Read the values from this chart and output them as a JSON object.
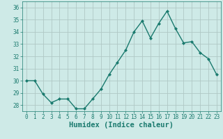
{
  "title": "",
  "xlabel": "Humidex (Indice chaleur)",
  "x": [
    0,
    1,
    2,
    3,
    4,
    5,
    6,
    7,
    8,
    9,
    10,
    11,
    12,
    13,
    14,
    15,
    16,
    17,
    18,
    19,
    20,
    21,
    22,
    23
  ],
  "y": [
    30,
    30,
    28.9,
    28.2,
    28.5,
    28.5,
    27.7,
    27.7,
    28.5,
    29.3,
    30.5,
    31.5,
    32.5,
    34.0,
    34.9,
    33.5,
    34.7,
    35.7,
    34.3,
    33.1,
    33.2,
    32.3,
    31.8,
    30.5
  ],
  "line_color": "#1a7a6e",
  "marker": "D",
  "marker_size": 2.0,
  "bg_color": "#ceeae7",
  "grid_color": "#b0c8c5",
  "ylim": [
    27.5,
    36.5
  ],
  "yticks": [
    28,
    29,
    30,
    31,
    32,
    33,
    34,
    35,
    36
  ],
  "xticks": [
    0,
    1,
    2,
    3,
    4,
    5,
    6,
    7,
    8,
    9,
    10,
    11,
    12,
    13,
    14,
    15,
    16,
    17,
    18,
    19,
    20,
    21,
    22,
    23
  ],
  "tick_label_fontsize": 5.5,
  "xlabel_fontsize": 7.5,
  "line_width": 1.0
}
